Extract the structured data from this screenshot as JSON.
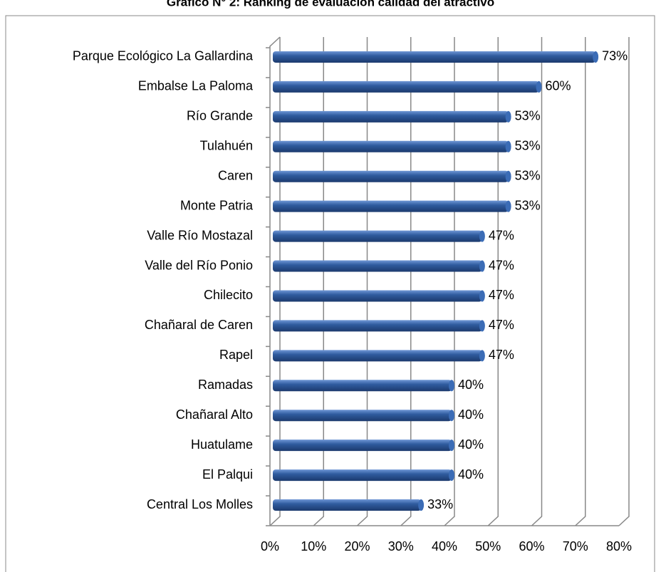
{
  "chart_data": {
    "type": "bar",
    "orientation": "horizontal",
    "title": "Gráfico N° 2: Ranking de evaluación calidad del atractivo",
    "categories": [
      "Parque Ecológico La Gallardina",
      "Embalse La Paloma",
      "Río Grande",
      "Tulahuén",
      "Caren",
      "Monte Patria",
      "Valle Río Mostazal",
      "Valle del Río Ponio",
      "Chilecito",
      "Chañaral de Caren",
      "Rapel",
      "Ramadas",
      "Chañaral Alto",
      "Huatulame",
      "El Palqui",
      "Central Los Molles"
    ],
    "values": [
      73,
      60,
      53,
      53,
      53,
      53,
      47,
      47,
      47,
      47,
      47,
      40,
      40,
      40,
      40,
      33
    ],
    "value_labels": [
      "73%",
      "60%",
      "53%",
      "53%",
      "53%",
      "53%",
      "47%",
      "47%",
      "47%",
      "47%",
      "47%",
      "40%",
      "40%",
      "40%",
      "40%",
      "33%"
    ],
    "color": "#2f5b9e",
    "xlim": [
      0,
      80
    ],
    "xticks": [
      {
        "value": 0,
        "label": "0%"
      },
      {
        "value": 10,
        "label": "10%"
      },
      {
        "value": 20,
        "label": "20%"
      },
      {
        "value": 30,
        "label": "30%"
      },
      {
        "value": 40,
        "label": "40%"
      },
      {
        "value": 50,
        "label": "50%"
      },
      {
        "value": 60,
        "label": "60%"
      },
      {
        "value": 70,
        "label": "70%"
      },
      {
        "value": 80,
        "label": "80%"
      }
    ],
    "grid": true
  }
}
